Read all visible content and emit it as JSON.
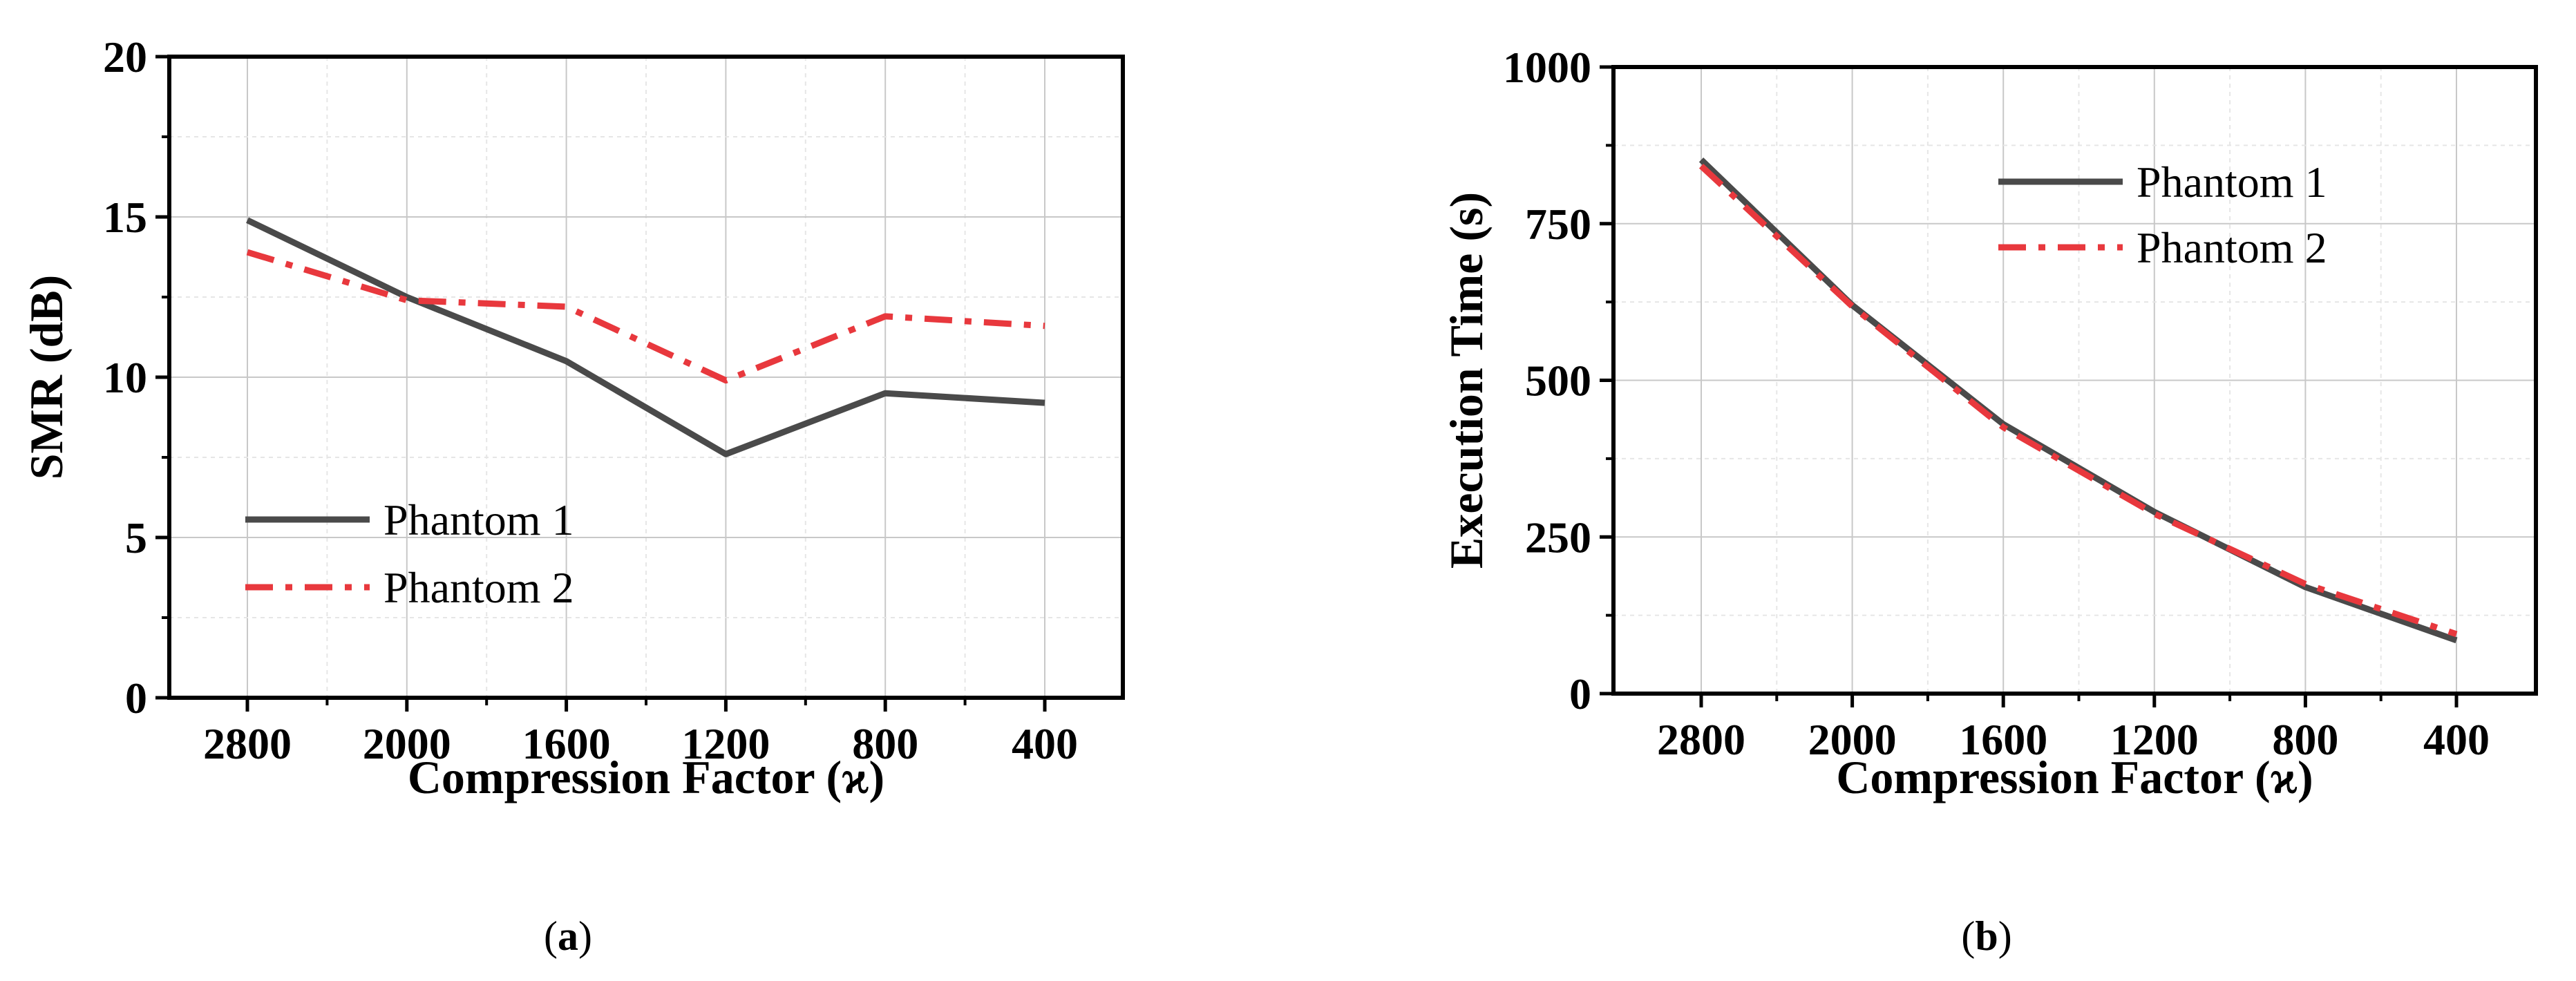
{
  "panel_labels": [
    {
      "open": "(",
      "letter": "a",
      "close": ")"
    },
    {
      "open": "(",
      "letter": "b",
      "close": ")"
    }
  ],
  "chart_data": [
    {
      "type": "line",
      "xlabel": "Compression Factor (ϰ)",
      "ylabel": "SMR (dB)",
      "categories": [
        "2800",
        "2000",
        "1600",
        "1200",
        "800",
        "400"
      ],
      "ylim": [
        0,
        20
      ],
      "yticks": [
        0,
        5,
        10,
        15,
        20
      ],
      "grid": true,
      "legend_position": "lower-left",
      "series": [
        {
          "name": "Phantom 1",
          "values": [
            14.9,
            12.5,
            10.5,
            7.6,
            9.5,
            9.2
          ],
          "color": "#4a4a4a",
          "style": "solid"
        },
        {
          "name": "Phantom 2",
          "values": [
            13.9,
            12.4,
            12.2,
            9.9,
            11.9,
            11.6
          ],
          "color": "#e8383d",
          "style": "dash-dot"
        }
      ]
    },
    {
      "type": "line",
      "xlabel": "Compression Factor (ϰ)",
      "ylabel": "Execution Time (s)",
      "categories": [
        "2800",
        "2000",
        "1600",
        "1200",
        "800",
        "400"
      ],
      "ylim": [
        0,
        1000
      ],
      "yticks": [
        0,
        250,
        500,
        750,
        1000
      ],
      "grid": true,
      "legend_position": "top-right",
      "series": [
        {
          "name": "Phantom 1",
          "values": [
            852,
            620,
            430,
            290,
            170,
            85
          ],
          "color": "#4a4a4a",
          "style": "solid"
        },
        {
          "name": "Phantom 2",
          "values": [
            842,
            618,
            425,
            287,
            175,
            95
          ],
          "color": "#e8383d",
          "style": "dash-dot"
        }
      ]
    }
  ]
}
